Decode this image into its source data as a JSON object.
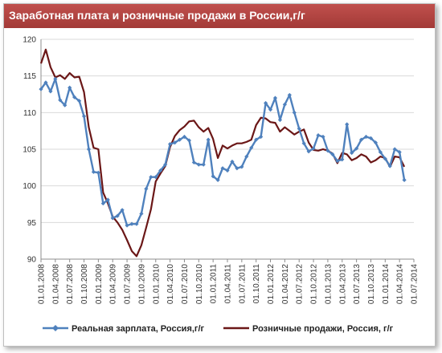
{
  "header": {
    "title": "Заработная плата и розничные продажи в России,г/г"
  },
  "chart_data": {
    "type": "line",
    "title": "Заработная плата и розничные продажи в России,г/г",
    "xlabel": "",
    "ylabel": "",
    "ylim": [
      90,
      120
    ],
    "yticks": [
      90,
      95,
      100,
      105,
      110,
      115,
      120
    ],
    "xlim": [
      0,
      78
    ],
    "xtick_labels": [
      "01.01.2008",
      "01.04.2008",
      "01.07.2008",
      "01.10.2008",
      "01.01.2009",
      "01.04.2009",
      "01.07.2009",
      "01.10.2009",
      "01.01.2010",
      "01.04.2010",
      "01.07.2010",
      "01.10.2010",
      "01.01.2011",
      "01.04.2011",
      "01.07.2011",
      "01.10.2011",
      "01.01.2012",
      "01.04.2012",
      "01.07.2012",
      "01.10.2012",
      "01.01.2013",
      "01.04.2013",
      "01.07.2013",
      "01.10.2013",
      "01.01.2014",
      "01.04.2014",
      "01.07.2014"
    ],
    "grid": "horizontal",
    "legend_position": "bottom",
    "series": [
      {
        "name": "Реальная зарплата, Россия,г/г",
        "color": "#4f81bd",
        "marker": "diamond",
        "values": [
          113.2,
          114.1,
          112.9,
          114.6,
          111.7,
          111.0,
          113.4,
          112.1,
          111.6,
          109.5,
          105.0,
          101.9,
          101.8,
          97.6,
          98.1,
          95.6,
          95.9,
          96.7,
          94.6,
          94.8,
          94.8,
          96.2,
          99.6,
          101.2,
          101.2,
          102.1,
          102.9,
          105.7,
          105.9,
          106.3,
          106.7,
          106.2,
          103.2,
          102.9,
          102.9,
          106.3,
          101.3,
          100.8,
          102.4,
          102.1,
          103.3,
          102.4,
          102.6,
          104.0,
          105.2,
          106.3,
          106.7,
          111.3,
          110.4,
          112.0,
          109.0,
          111.1,
          112.4,
          110.0,
          107.8,
          105.8,
          104.7,
          105.1,
          106.9,
          106.7,
          104.8,
          104.3,
          103.4,
          103.6,
          108.4,
          104.5,
          105.1,
          106.3,
          106.7,
          106.5,
          105.9,
          104.6,
          103.7,
          102.7,
          105.0,
          104.6,
          100.8
        ]
      },
      {
        "name": "Розничные продажи, Россия, г/г",
        "color": "#6b1717",
        "marker": "none",
        "values": [
          116.7,
          118.6,
          116.2,
          114.8,
          115.1,
          114.6,
          115.4,
          114.8,
          114.9,
          112.8,
          108.0,
          105.2,
          105.0,
          99.1,
          97.6,
          95.8,
          95.0,
          94.0,
          92.6,
          91.1,
          90.4,
          91.9,
          94.3,
          96.8,
          100.6,
          101.7,
          102.7,
          105.3,
          106.8,
          107.6,
          108.1,
          108.8,
          108.9,
          108.0,
          107.4,
          107.9,
          106.4,
          103.8,
          105.5,
          105.1,
          105.5,
          105.8,
          105.8,
          106.0,
          106.3,
          108.3,
          109.3,
          109.2,
          108.7,
          108.6,
          107.4,
          108.0,
          107.5,
          107.0,
          107.4,
          107.7,
          105.9,
          104.9,
          104.8,
          105.0,
          104.8,
          104.4,
          103.1,
          104.5,
          104.3,
          103.5,
          103.8,
          104.3,
          104.0,
          103.2,
          103.5,
          104.0,
          103.8,
          102.6,
          104.0,
          103.9,
          102.6
        ]
      }
    ]
  }
}
